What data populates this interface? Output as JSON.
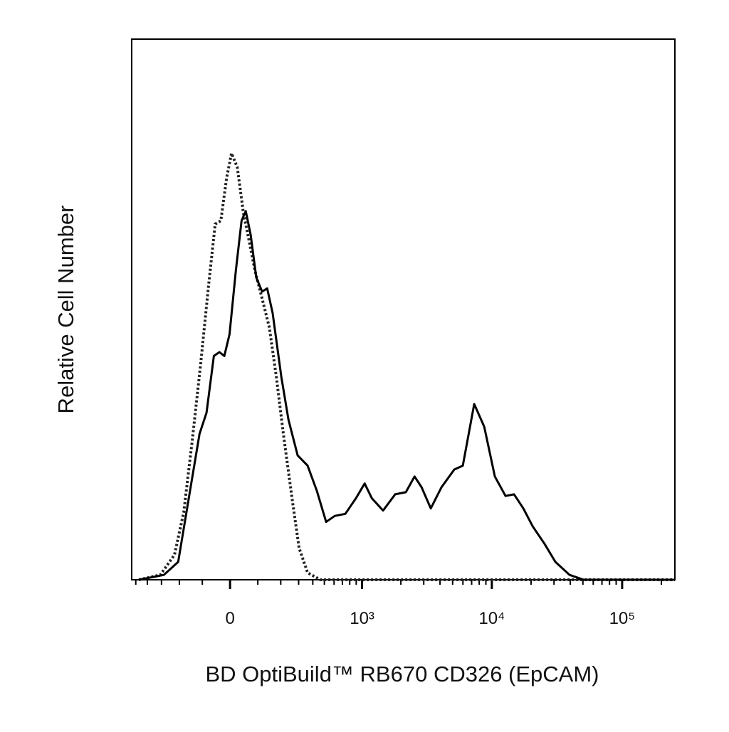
{
  "chart_data": {
    "type": "line",
    "xscale": "biexponential",
    "xlabel": "BD OptiBuild™ RB670 CD326 (EpCAM)",
    "ylabel": "Relative Cell Number",
    "xlim": [
      -540,
      254000
    ],
    "ylim": [
      0,
      100
    ],
    "xticks": [
      0,
      {
        "value": 1000,
        "label": "10³"
      },
      {
        "value": 10000,
        "label": "10⁴"
      },
      {
        "value": 100000,
        "label": "10⁵"
      }
    ],
    "xminor_ticks": [
      -500,
      -400,
      -300,
      -200,
      -100,
      100,
      200,
      300,
      400,
      500,
      600,
      700,
      800,
      900,
      2000,
      3000,
      4000,
      5000,
      6000,
      7000,
      8000,
      9000,
      20000,
      30000,
      40000,
      50000,
      60000,
      70000,
      80000,
      90000,
      200000
    ],
    "series": [
      {
        "style": "dotted",
        "color": "#222222",
        "x": [
          -471,
          -308,
          -225,
          -179,
          -141,
          -106,
          -76,
          -52,
          -32,
          -12,
          5,
          25,
          47,
          68,
          89,
          117,
          147,
          179,
          213,
          260,
          303,
          361,
          464,
          254000
        ],
        "values": [
          0,
          0.9,
          4.6,
          12.5,
          25.7,
          40.1,
          54.6,
          65.8,
          66.4,
          74.3,
          78.9,
          76.3,
          67.8,
          62.5,
          57.2,
          52.0,
          46.7,
          37.5,
          27.0,
          15.1,
          5.9,
          1.3,
          0,
          0
        ]
      },
      {
        "style": "solid",
        "color": "#000000",
        "x": [
          -471,
          -285,
          -206,
          -156,
          -111,
          -84,
          -57,
          -37,
          -20,
          -2,
          20,
          40,
          55,
          73,
          94,
          117,
          138,
          162,
          203,
          240,
          294,
          361,
          434,
          517,
          607,
          739,
          897,
          1047,
          1190,
          1458,
          1807,
          2185,
          2548,
          2887,
          3399,
          4106,
          5149,
          5988,
          7321,
          8742,
          10545,
          12740,
          14818,
          17444,
          20560,
          25460,
          30733,
          39533,
          50842,
          254000
        ],
        "values": [
          0,
          0.9,
          3.3,
          15.1,
          27.0,
          30.9,
          41.4,
          42.1,
          41.4,
          45.4,
          57.2,
          66.4,
          68.2,
          63.8,
          55.9,
          53.3,
          53.9,
          49.3,
          37.5,
          29.6,
          23.0,
          21.1,
          16.4,
          10.7,
          11.8,
          12.2,
          15.1,
          17.8,
          15.1,
          12.8,
          15.8,
          16.2,
          19.1,
          17.1,
          13.2,
          17.1,
          20.4,
          21.1,
          32.5,
          28.3,
          19.1,
          15.5,
          15.8,
          13.2,
          9.9,
          6.6,
          3.3,
          0.9,
          0,
          0
        ]
      }
    ]
  }
}
